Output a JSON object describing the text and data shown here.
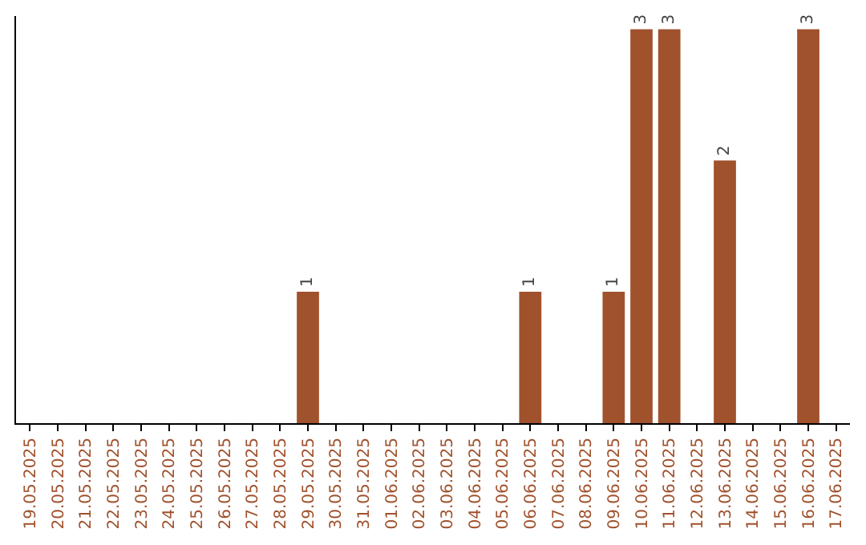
{
  "chart_data": {
    "type": "bar",
    "categories": [
      "19.05.2025",
      "20.05.2025",
      "21.05.2025",
      "22.05.2025",
      "23.05.2025",
      "24.05.2025",
      "25.05.2025",
      "26.05.2025",
      "27.05.2025",
      "28.05.2025",
      "29.05.2025",
      "30.05.2025",
      "31.05.2025",
      "01.06.2025",
      "02.06.2025",
      "03.06.2025",
      "04.06.2025",
      "05.06.2025",
      "06.06.2025",
      "07.06.2025",
      "08.06.2025",
      "09.06.2025",
      "10.06.2025",
      "11.06.2025",
      "12.06.2025",
      "13.06.2025",
      "14.06.2025",
      "15.06.2025",
      "16.06.2025",
      "17.06.2025"
    ],
    "values": [
      0,
      0,
      0,
      0,
      0,
      0,
      0,
      0,
      0,
      0,
      1,
      0,
      0,
      0,
      0,
      0,
      0,
      0,
      1,
      0,
      0,
      1,
      3,
      3,
      0,
      2,
      0,
      0,
      3,
      0
    ],
    "value_labels": [
      null,
      null,
      null,
      null,
      null,
      null,
      null,
      null,
      null,
      null,
      "1",
      null,
      null,
      null,
      null,
      null,
      null,
      null,
      "1",
      null,
      null,
      "1",
      "3",
      "3",
      null,
      "2",
      null,
      null,
      "3",
      null
    ],
    "color": "#a0522d",
    "ylim": [
      0,
      3.1
    ],
    "tick_labels": "x"
  }
}
